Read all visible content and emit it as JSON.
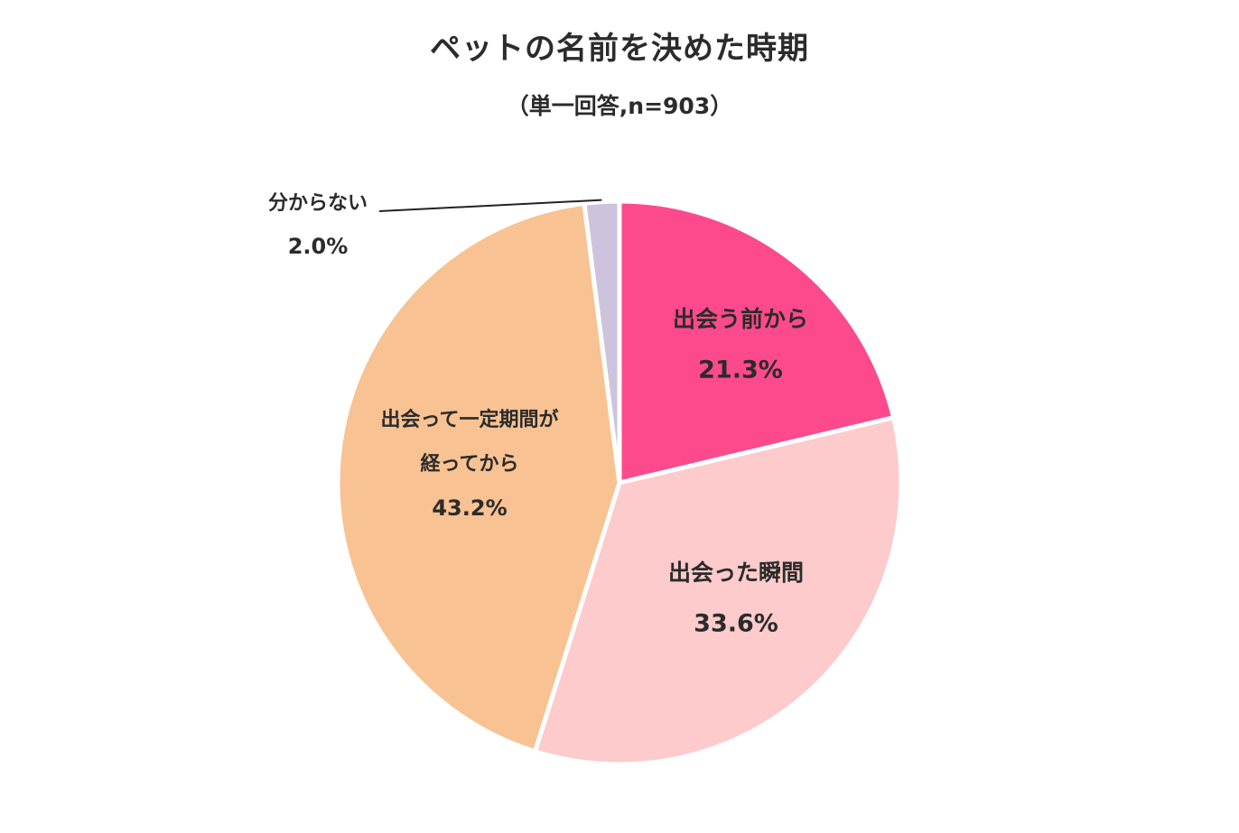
{
  "chart_data": {
    "type": "pie",
    "title": "ペットの名前を決めた時期",
    "subtitle": "（単一回答,n=903）",
    "slices": [
      {
        "label_lines": [
          "出会う前から"
        ],
        "value": 21.3,
        "value_label": "21.3%",
        "color": "#fd4a8c"
      },
      {
        "label_lines": [
          "出会った瞬間"
        ],
        "value": 33.6,
        "value_label": "33.6%",
        "color": "#fdcbcb"
      },
      {
        "label_lines": [
          "出会って一定期間が",
          "経ってから"
        ],
        "value": 43.2,
        "value_label": "43.2%",
        "color": "#f8c292"
      },
      {
        "label_lines": [
          "分からない"
        ],
        "value": 2.0,
        "value_label": "2.0%",
        "color": "#cdc3dc"
      }
    ],
    "start_angle": "12 o'clock",
    "direction": "clockwise",
    "legend": "none",
    "labels": "inside slices; smallest slice labeled outside with leader line"
  }
}
